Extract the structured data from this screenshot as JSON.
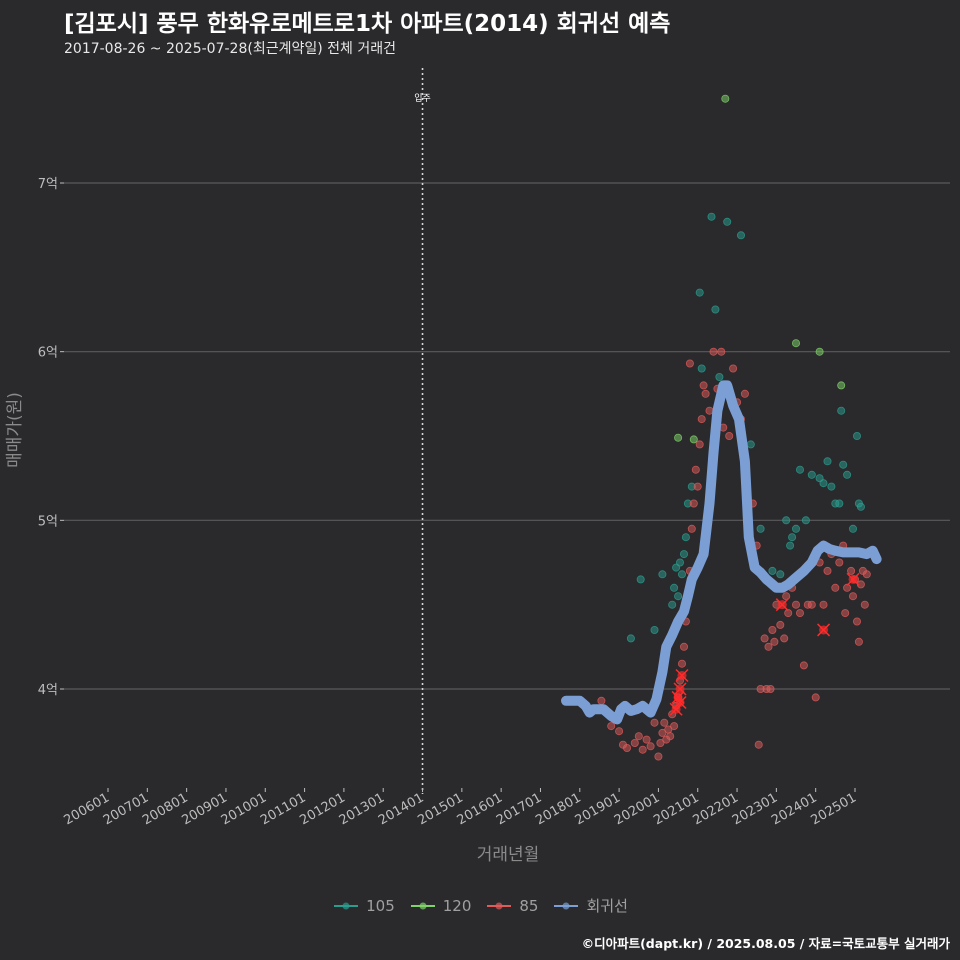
{
  "title": "[김포시] 풍무 한화유로메트로1차 아파트(2014) 회귀선 예측",
  "subtitle": "2017-08-26 ~ 2025-07-28(최근계약일) 전체 거래건",
  "caption": "©디아파트(dapt.kr) / 2025.08.05 / 자료=국토교통부 실거래가",
  "colors": {
    "background": "#2a2a2d",
    "grid": "#5a5a5c",
    "s105": "#2a9d8f",
    "s120": "#7fd36a",
    "s85": "#e05a5a",
    "regression": "#7b9fd4",
    "highlight": "#ff2a2a"
  },
  "chart_data": {
    "type": "scatter",
    "xlabel": "거래년월",
    "ylabel": "매매가(원)",
    "x_ticks": [
      "200601",
      "200701",
      "200801",
      "200901",
      "201001",
      "201101",
      "201201",
      "201301",
      "201401",
      "201501",
      "201601",
      "201701",
      "201801",
      "201901",
      "202001",
      "202101",
      "202201",
      "202301",
      "202401",
      "202501"
    ],
    "x_range": [
      2005.0,
      2026.0
    ],
    "y_ticks": [
      {
        "value": 4.0,
        "label": "4억"
      },
      {
        "value": 5.0,
        "label": "5억"
      },
      {
        "value": 6.0,
        "label": "6억"
      },
      {
        "value": 7.0,
        "label": "7억"
      }
    ],
    "y_range": [
      3.45,
      7.6
    ],
    "y_unit": "억",
    "grid": true,
    "legend_position": "bottom",
    "annotation": {
      "x": 2014.0,
      "label": "입주"
    },
    "series": [
      {
        "name": "105",
        "color": "#2a9d8f",
        "points": [
          [
            2019.3,
            4.3
          ],
          [
            2019.55,
            4.65
          ],
          [
            2019.9,
            4.35
          ],
          [
            2020.1,
            4.68
          ],
          [
            2020.35,
            4.5
          ],
          [
            2020.4,
            4.6
          ],
          [
            2020.45,
            4.72
          ],
          [
            2020.5,
            4.55
          ],
          [
            2020.55,
            4.75
          ],
          [
            2020.6,
            4.68
          ],
          [
            2020.65,
            4.8
          ],
          [
            2020.7,
            4.9
          ],
          [
            2020.75,
            5.1
          ],
          [
            2020.85,
            5.2
          ],
          [
            2021.05,
            6.35
          ],
          [
            2021.1,
            5.9
          ],
          [
            2021.35,
            6.8
          ],
          [
            2021.45,
            6.25
          ],
          [
            2021.55,
            5.85
          ],
          [
            2021.75,
            6.77
          ],
          [
            2022.1,
            6.69
          ],
          [
            2022.35,
            5.45
          ],
          [
            2022.6,
            4.95
          ],
          [
            2022.9,
            4.7
          ],
          [
            2023.1,
            4.68
          ],
          [
            2023.25,
            5.0
          ],
          [
            2023.35,
            4.85
          ],
          [
            2023.4,
            4.9
          ],
          [
            2023.5,
            4.95
          ],
          [
            2023.6,
            5.3
          ],
          [
            2023.75,
            5.0
          ],
          [
            2023.9,
            5.27
          ],
          [
            2024.0,
            4.8
          ],
          [
            2024.1,
            5.25
          ],
          [
            2024.2,
            5.22
          ],
          [
            2024.3,
            5.35
          ],
          [
            2024.4,
            5.2
          ],
          [
            2024.5,
            5.1
          ],
          [
            2024.6,
            5.1
          ],
          [
            2024.65,
            5.65
          ],
          [
            2024.7,
            5.33
          ],
          [
            2024.8,
            5.27
          ],
          [
            2024.95,
            4.95
          ],
          [
            2025.05,
            5.5
          ],
          [
            2025.1,
            5.1
          ],
          [
            2025.15,
            5.08
          ]
        ]
      },
      {
        "name": "120",
        "color": "#7fd36a",
        "points": [
          [
            2020.5,
            5.49
          ],
          [
            2020.9,
            5.48
          ],
          [
            2021.7,
            7.5
          ],
          [
            2023.5,
            6.05
          ],
          [
            2024.1,
            6.0
          ],
          [
            2024.65,
            5.8
          ]
        ]
      },
      {
        "name": "85",
        "color": "#e05a5a",
        "points": [
          [
            2018.55,
            3.93
          ],
          [
            2018.8,
            3.78
          ],
          [
            2019.0,
            3.75
          ],
          [
            2019.1,
            3.67
          ],
          [
            2019.2,
            3.65
          ],
          [
            2019.4,
            3.68
          ],
          [
            2019.5,
            3.72
          ],
          [
            2019.6,
            3.64
          ],
          [
            2019.7,
            3.7
          ],
          [
            2019.8,
            3.66
          ],
          [
            2019.9,
            3.8
          ],
          [
            2020.0,
            3.6
          ],
          [
            2020.05,
            3.68
          ],
          [
            2020.1,
            3.74
          ],
          [
            2020.15,
            3.8
          ],
          [
            2020.2,
            3.7
          ],
          [
            2020.25,
            3.76
          ],
          [
            2020.3,
            3.72
          ],
          [
            2020.35,
            3.85
          ],
          [
            2020.4,
            3.78
          ],
          [
            2020.45,
            3.9
          ],
          [
            2020.5,
            3.95
          ],
          [
            2020.55,
            4.05
          ],
          [
            2020.6,
            4.15
          ],
          [
            2020.65,
            4.25
          ],
          [
            2020.7,
            4.4
          ],
          [
            2020.75,
            4.55
          ],
          [
            2020.8,
            4.7
          ],
          [
            2020.85,
            4.95
          ],
          [
            2020.9,
            5.1
          ],
          [
            2020.95,
            5.3
          ],
          [
            2021.0,
            5.2
          ],
          [
            2021.05,
            5.45
          ],
          [
            2021.1,
            5.6
          ],
          [
            2020.8,
            5.93
          ],
          [
            2021.15,
            5.8
          ],
          [
            2021.2,
            5.75
          ],
          [
            2021.3,
            5.65
          ],
          [
            2021.4,
            6.0
          ],
          [
            2021.5,
            5.78
          ],
          [
            2021.6,
            6.0
          ],
          [
            2021.65,
            5.55
          ],
          [
            2021.8,
            5.5
          ],
          [
            2021.9,
            5.9
          ],
          [
            2022.0,
            5.7
          ],
          [
            2022.1,
            5.6
          ],
          [
            2022.2,
            5.75
          ],
          [
            2022.4,
            5.1
          ],
          [
            2022.5,
            4.85
          ],
          [
            2022.55,
            3.67
          ],
          [
            2022.6,
            4.0
          ],
          [
            2022.7,
            4.3
          ],
          [
            2022.75,
            4.0
          ],
          [
            2022.8,
            4.25
          ],
          [
            2022.85,
            4.0
          ],
          [
            2022.9,
            4.35
          ],
          [
            2022.95,
            4.28
          ],
          [
            2023.0,
            4.5
          ],
          [
            2023.1,
            4.38
          ],
          [
            2023.2,
            4.3
          ],
          [
            2023.25,
            4.55
          ],
          [
            2023.3,
            4.45
          ],
          [
            2023.4,
            4.6
          ],
          [
            2023.5,
            4.5
          ],
          [
            2023.6,
            4.45
          ],
          [
            2023.7,
            4.14
          ],
          [
            2023.8,
            4.5
          ],
          [
            2023.9,
            4.5
          ],
          [
            2024.0,
            3.95
          ],
          [
            2024.1,
            4.75
          ],
          [
            2024.2,
            4.5
          ],
          [
            2024.3,
            4.7
          ],
          [
            2024.4,
            4.8
          ],
          [
            2024.5,
            4.6
          ],
          [
            2024.6,
            4.75
          ],
          [
            2024.7,
            4.85
          ],
          [
            2024.8,
            4.6
          ],
          [
            2024.9,
            4.7
          ],
          [
            2025.0,
            4.65
          ],
          [
            2025.05,
            4.4
          ],
          [
            2025.1,
            4.28
          ],
          [
            2025.15,
            4.62
          ],
          [
            2025.2,
            4.7
          ],
          [
            2025.25,
            4.5
          ],
          [
            2025.3,
            4.68
          ],
          [
            2024.75,
            4.45
          ],
          [
            2024.95,
            4.55
          ]
        ]
      },
      {
        "name": "85-highlight",
        "color": "#ff2a2a",
        "points": [
          [
            2020.45,
            3.88
          ],
          [
            2020.5,
            3.95
          ],
          [
            2020.55,
            4.0
          ],
          [
            2020.6,
            4.08
          ],
          [
            2020.55,
            3.92
          ],
          [
            2023.15,
            4.5
          ],
          [
            2024.2,
            4.35
          ],
          [
            2024.95,
            4.65
          ]
        ]
      },
      {
        "name": "회귀선",
        "color": "#7b9fd4",
        "points": [
          [
            2017.65,
            3.93
          ],
          [
            2017.8,
            3.93
          ],
          [
            2018.0,
            3.93
          ],
          [
            2018.15,
            3.9
          ],
          [
            2018.25,
            3.86
          ],
          [
            2018.35,
            3.88
          ],
          [
            2018.6,
            3.88
          ],
          [
            2018.8,
            3.84
          ],
          [
            2018.95,
            3.82
          ],
          [
            2019.05,
            3.88
          ],
          [
            2019.15,
            3.9
          ],
          [
            2019.3,
            3.87
          ],
          [
            2019.45,
            3.88
          ],
          [
            2019.6,
            3.9
          ],
          [
            2019.8,
            3.86
          ],
          [
            2019.95,
            3.94
          ],
          [
            2020.1,
            4.1
          ],
          [
            2020.2,
            4.25
          ],
          [
            2020.35,
            4.32
          ],
          [
            2020.5,
            4.4
          ],
          [
            2020.65,
            4.46
          ],
          [
            2020.75,
            4.55
          ],
          [
            2020.85,
            4.65
          ],
          [
            2021.0,
            4.72
          ],
          [
            2021.15,
            4.8
          ],
          [
            2021.3,
            5.1
          ],
          [
            2021.4,
            5.4
          ],
          [
            2021.5,
            5.65
          ],
          [
            2021.65,
            5.8
          ],
          [
            2021.75,
            5.8
          ],
          [
            2021.9,
            5.68
          ],
          [
            2022.05,
            5.6
          ],
          [
            2022.2,
            5.35
          ],
          [
            2022.3,
            4.9
          ],
          [
            2022.45,
            4.72
          ],
          [
            2022.6,
            4.69
          ],
          [
            2022.75,
            4.65
          ],
          [
            2022.85,
            4.63
          ],
          [
            2023.0,
            4.6
          ],
          [
            2023.15,
            4.6
          ],
          [
            2023.3,
            4.62
          ],
          [
            2023.5,
            4.66
          ],
          [
            2023.7,
            4.7
          ],
          [
            2023.9,
            4.75
          ],
          [
            2024.05,
            4.82
          ],
          [
            2024.2,
            4.85
          ],
          [
            2024.35,
            4.83
          ],
          [
            2024.5,
            4.82
          ],
          [
            2024.7,
            4.81
          ],
          [
            2024.9,
            4.81
          ],
          [
            2025.1,
            4.81
          ],
          [
            2025.3,
            4.8
          ],
          [
            2025.45,
            4.82
          ],
          [
            2025.55,
            4.77
          ]
        ]
      }
    ]
  },
  "legend": [
    {
      "label": "105",
      "color": "#2a9d8f"
    },
    {
      "label": "120",
      "color": "#7fd36a"
    },
    {
      "label": "85",
      "color": "#e05a5a"
    },
    {
      "label": "회귀선",
      "color": "#7b9fd4"
    }
  ]
}
